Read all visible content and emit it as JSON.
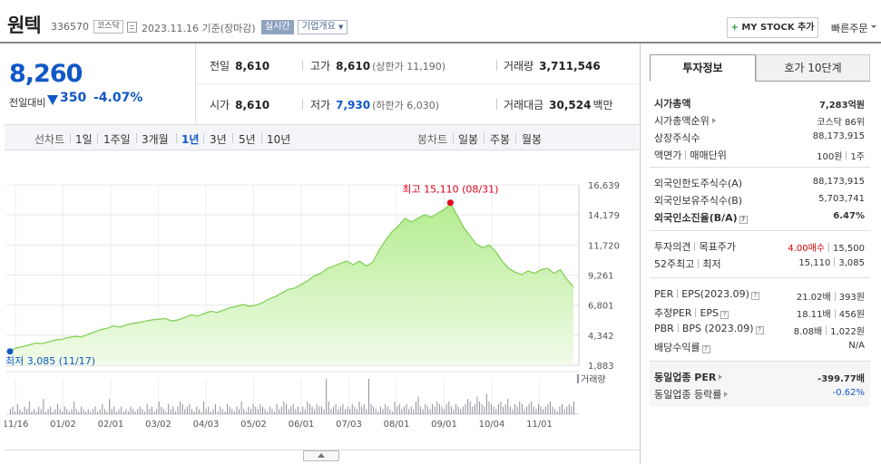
{
  "header": {
    "name": "원텍",
    "code": "336570",
    "market": "코스닥",
    "date": "2023.11.16 기준(장마감)",
    "realtime": "실시간",
    "company_info": "기업개요",
    "mystock": "MY STOCK 추가",
    "quick_order": "빠른주문"
  },
  "price": {
    "current": "8,260",
    "change_label": "전일대비",
    "change": "350",
    "change_pct": "-4.07%",
    "direction": "down",
    "color": "#1158c7"
  },
  "quote": {
    "prev_label": "전일",
    "prev": "8,610",
    "high_label": "고가",
    "high": "8,610",
    "upper_limit": "(상한가 11,190)",
    "volume_label": "거래량",
    "volume": "3,711,546",
    "open_label": "시가",
    "open": "8,610",
    "low_label": "저가",
    "low": "7,930",
    "lower_limit": "(하한가 6,030)",
    "amount_label": "거래대금",
    "amount": "30,524",
    "amount_unit": "백만"
  },
  "period_bar": {
    "line_label": "선차트",
    "periods": [
      "1일",
      "1주일",
      "3개월",
      "1년",
      "3년",
      "5년",
      "10년"
    ],
    "active_period": "1년",
    "candle_label": "봉차트",
    "candles": [
      "일봉",
      "주봉",
      "월봉"
    ]
  },
  "chart_data": {
    "type": "area",
    "series": [
      {
        "name": "",
        "values": [
          3085,
          3300,
          3400,
          3550,
          3700,
          3650,
          3800,
          3950,
          4000,
          4150,
          4250,
          4200,
          4400,
          4600,
          4800,
          4900,
          5100,
          5000,
          5200,
          5300,
          5400,
          5500,
          5600,
          5650,
          5700,
          5500,
          5600,
          5800,
          6000,
          5900,
          6100,
          6300,
          6200,
          6400,
          6600,
          6700,
          6850,
          6700,
          6800,
          7000,
          7300,
          7500,
          7800,
          8100,
          8200,
          8500,
          8800,
          9200,
          9400,
          9800,
          10000,
          10200,
          10400,
          10100,
          10400,
          10000,
          10300,
          11300,
          12100,
          12800,
          13300,
          13900,
          13600,
          13900,
          14200,
          14000,
          14300,
          14600,
          15110,
          14200,
          13200,
          12500,
          11800,
          11500,
          11700,
          11200,
          10400,
          9800,
          9500,
          9300,
          9600,
          9400,
          9700,
          9800,
          9400,
          9700,
          8900,
          8300
        ]
      }
    ],
    "x_labels": [
      "11/16",
      "01/02",
      "02/01",
      "03/02",
      "04/03",
      "05/02",
      "06/01",
      "07/03",
      "08/01",
      "09/01",
      "10/04",
      "11/01"
    ],
    "y_ticks": [
      "16,639",
      "14,179",
      "11,720",
      "9,261",
      "6,801",
      "4,342",
      "1,883"
    ],
    "ylim": [
      1883,
      16639
    ],
    "max_label": "최고 15,110 (08/31)",
    "min_label": "최저 3,085 (11/17)",
    "volume_label": "거래량",
    "volume": [
      2,
      3,
      1,
      4,
      2,
      1,
      3,
      2,
      5,
      1,
      2,
      1,
      3,
      2,
      6,
      1,
      2,
      3,
      1,
      2,
      4,
      2,
      1,
      3,
      2,
      1,
      2,
      5,
      2,
      1,
      3,
      2,
      1,
      2,
      1,
      2,
      3,
      1,
      2,
      4,
      2,
      1,
      6,
      2,
      3,
      1,
      2,
      3,
      1,
      2,
      1,
      3,
      2,
      1,
      2,
      3,
      2,
      1,
      4,
      2,
      3,
      1,
      2,
      5,
      3,
      2,
      1,
      4,
      2,
      3,
      1,
      3,
      5,
      4,
      2,
      3,
      4,
      2,
      1,
      3,
      2,
      1,
      5,
      2,
      3,
      1,
      2,
      4,
      1,
      3,
      2,
      1,
      4,
      3,
      2,
      1,
      3,
      2,
      5,
      2,
      1,
      3,
      2,
      4,
      3,
      2,
      4,
      3,
      2,
      1,
      3,
      2,
      1,
      4,
      2,
      3,
      5,
      4,
      2,
      3,
      4,
      2,
      3,
      1,
      3,
      2,
      5,
      4,
      3,
      2,
      4,
      3,
      3,
      2,
      14,
      5,
      2,
      3,
      4,
      2,
      3,
      4,
      2,
      3,
      2,
      4,
      3,
      2,
      5,
      3,
      4,
      2,
      14,
      4,
      3,
      2,
      1,
      3,
      2,
      4,
      3,
      2,
      1,
      5,
      3,
      4,
      2,
      3,
      4,
      2,
      3,
      2,
      5,
      7,
      3,
      2,
      4,
      3,
      2,
      4,
      3,
      5,
      4,
      3,
      2,
      4,
      5,
      3,
      2,
      4,
      3,
      2,
      3,
      4,
      6,
      5,
      3,
      4,
      7,
      5,
      4,
      3,
      8,
      5,
      4,
      3,
      2,
      4,
      5,
      3,
      4,
      6,
      3,
      2,
      4,
      3,
      5,
      4,
      2,
      3,
      4,
      5,
      3,
      2,
      4,
      3,
      2,
      3,
      4,
      5,
      3,
      2,
      1,
      3,
      4,
      2,
      3,
      4,
      3,
      5
    ]
  },
  "right_panel": {
    "tab_active": "투자정보",
    "tab_inactive": "호가 10단계",
    "market_cap_label": "시가총액",
    "market_cap": "7,283억원",
    "market_cap_rank_label": "시가총액순위",
    "market_cap_rank": "코스닥 86위",
    "shares_label": "상장주식수",
    "shares": "88,173,915",
    "par_label": "액면가",
    "trade_unit_label": "매매단위",
    "par": "100원",
    "trade_unit": "1주",
    "foreign_limit_label": "외국인한도주식수(A)",
    "foreign_limit": "88,173,915",
    "foreign_hold_label": "외국인보유주식수(B)",
    "foreign_hold": "5,703,741",
    "foreign_ratio_label": "외국인소진율(B/A)",
    "foreign_ratio": "6.47%",
    "opinion_label": "투자의견",
    "target_label": "목표주가",
    "opinion": "4.00매수",
    "target": "15,500",
    "w52_high_label": "52주최고",
    "w52_low_label": "최저",
    "w52_high": "15,110",
    "w52_low": "3,085",
    "per_label": "PER",
    "eps_label": "EPS(2023.09)",
    "per": "21.02배",
    "eps": "393원",
    "est_per_label": "추정PER",
    "est_eps_label": "EPS",
    "est_per": "18.11배",
    "est_eps": "456원",
    "pbr_label": "PBR",
    "bps_label": "BPS (2023.09)",
    "pbr": "8.08배",
    "bps": "1,022원",
    "div_label": "배당수익률",
    "div": "N/A",
    "ind_per_label": "동일업종 PER",
    "ind_per": "-399.77배",
    "ind_rate_label": "동일업종 등락률",
    "ind_rate": "-0.62%"
  }
}
